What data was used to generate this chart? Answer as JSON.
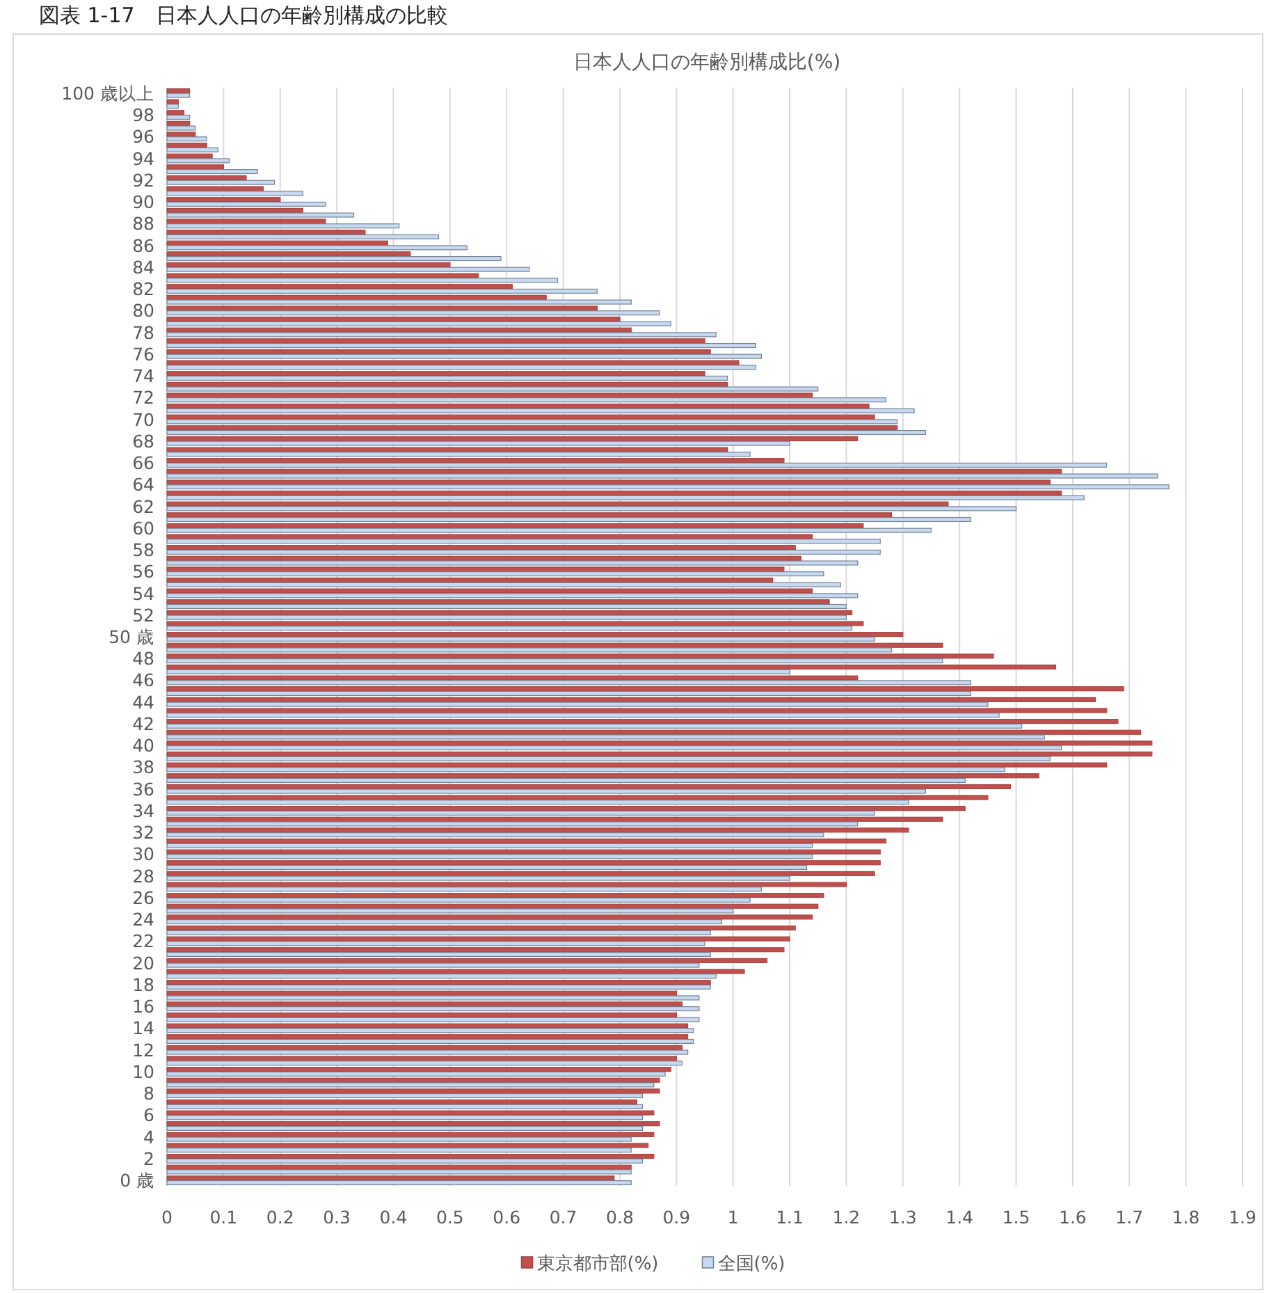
{
  "chart_data": {
    "type": "bar",
    "orientation": "horizontal",
    "title": "日本人人口の年齢別構成比(%)",
    "annotations": [
      "図表 1-17　日本人人口の年齢別構成の比較"
    ],
    "categories": [
      "100 歳以上",
      null,
      "98",
      null,
      "96",
      null,
      "94",
      null,
      "92",
      null,
      "90",
      null,
      "88",
      null,
      "86",
      null,
      "84",
      null,
      "82",
      null,
      "80",
      null,
      "78",
      null,
      "76",
      null,
      "74",
      null,
      "72",
      null,
      "70",
      null,
      "68",
      null,
      "66",
      null,
      "64",
      null,
      "62",
      null,
      "60",
      null,
      "58",
      null,
      "56",
      null,
      "54",
      null,
      "52",
      null,
      "50 歳",
      null,
      "48",
      null,
      "46",
      null,
      "44",
      null,
      "42",
      null,
      "40",
      null,
      "38",
      null,
      "36",
      null,
      "34",
      null,
      "32",
      null,
      "30",
      null,
      "28",
      null,
      "26",
      null,
      "24",
      null,
      "22",
      null,
      "20",
      null,
      "18",
      null,
      "16",
      null,
      "14",
      null,
      "12",
      null,
      "10",
      null,
      "8",
      null,
      "6",
      null,
      "4",
      null,
      "2",
      null,
      "0 歳"
    ],
    "series": [
      {
        "name": "東京都市部(%)",
        "color": "#c0504d",
        "values": [
          0.04,
          0.02,
          0.03,
          0.04,
          0.05,
          0.07,
          0.08,
          0.1,
          0.14,
          0.17,
          0.2,
          0.24,
          0.28,
          0.35,
          0.39,
          0.43,
          0.5,
          0.55,
          0.61,
          0.67,
          0.76,
          0.8,
          0.82,
          0.95,
          0.96,
          1.01,
          0.95,
          0.99,
          1.14,
          1.24,
          1.25,
          1.29,
          1.22,
          0.99,
          1.09,
          1.58,
          1.56,
          1.58,
          1.38,
          1.28,
          1.23,
          1.14,
          1.11,
          1.12,
          1.09,
          1.07,
          1.14,
          1.17,
          1.21,
          1.23,
          1.3,
          1.37,
          1.46,
          1.57,
          1.22,
          1.69,
          1.64,
          1.66,
          1.68,
          1.72,
          1.74,
          1.74,
          1.66,
          1.54,
          1.49,
          1.45,
          1.41,
          1.37,
          1.31,
          1.27,
          1.26,
          1.26,
          1.25,
          1.2,
          1.16,
          1.15,
          1.14,
          1.11,
          1.1,
          1.09,
          1.06,
          1.02,
          0.96,
          0.9,
          0.91,
          0.9,
          0.92,
          0.92,
          0.91,
          0.9,
          0.89,
          0.87,
          0.87,
          0.83,
          0.86,
          0.87,
          0.86,
          0.85,
          0.86,
          0.82,
          0.79
        ]
      },
      {
        "name": "全国(%)",
        "color": "#c6d9f0",
        "values": [
          0.04,
          0.02,
          0.04,
          0.05,
          0.07,
          0.09,
          0.11,
          0.16,
          0.19,
          0.24,
          0.28,
          0.33,
          0.41,
          0.48,
          0.53,
          0.59,
          0.64,
          0.69,
          0.76,
          0.82,
          0.87,
          0.89,
          0.97,
          1.04,
          1.05,
          1.04,
          0.99,
          1.15,
          1.27,
          1.32,
          1.29,
          1.34,
          1.1,
          1.03,
          1.66,
          1.75,
          1.77,
          1.62,
          1.5,
          1.42,
          1.35,
          1.26,
          1.26,
          1.22,
          1.16,
          1.19,
          1.22,
          1.2,
          1.2,
          1.21,
          1.25,
          1.28,
          1.37,
          1.1,
          1.42,
          1.42,
          1.45,
          1.47,
          1.51,
          1.55,
          1.58,
          1.56,
          1.48,
          1.41,
          1.34,
          1.31,
          1.25,
          1.22,
          1.16,
          1.14,
          1.14,
          1.13,
          1.1,
          1.05,
          1.03,
          1.0,
          0.98,
          0.96,
          0.95,
          0.96,
          0.94,
          0.97,
          0.96,
          0.94,
          0.94,
          0.94,
          0.93,
          0.93,
          0.92,
          0.91,
          0.88,
          0.86,
          0.84,
          0.84,
          0.84,
          0.84,
          0.82,
          0.82,
          0.84,
          0.82,
          0.82
        ]
      }
    ],
    "xlim": [
      0,
      1.9
    ],
    "xticks": [
      0,
      0.1,
      0.2,
      0.3,
      0.4,
      0.5,
      0.6,
      0.7,
      0.8,
      0.9,
      1,
      1.1,
      1.2,
      1.3,
      1.4,
      1.5,
      1.6,
      1.7,
      1.8,
      1.9
    ],
    "grid": "x",
    "legend": "bottom"
  }
}
